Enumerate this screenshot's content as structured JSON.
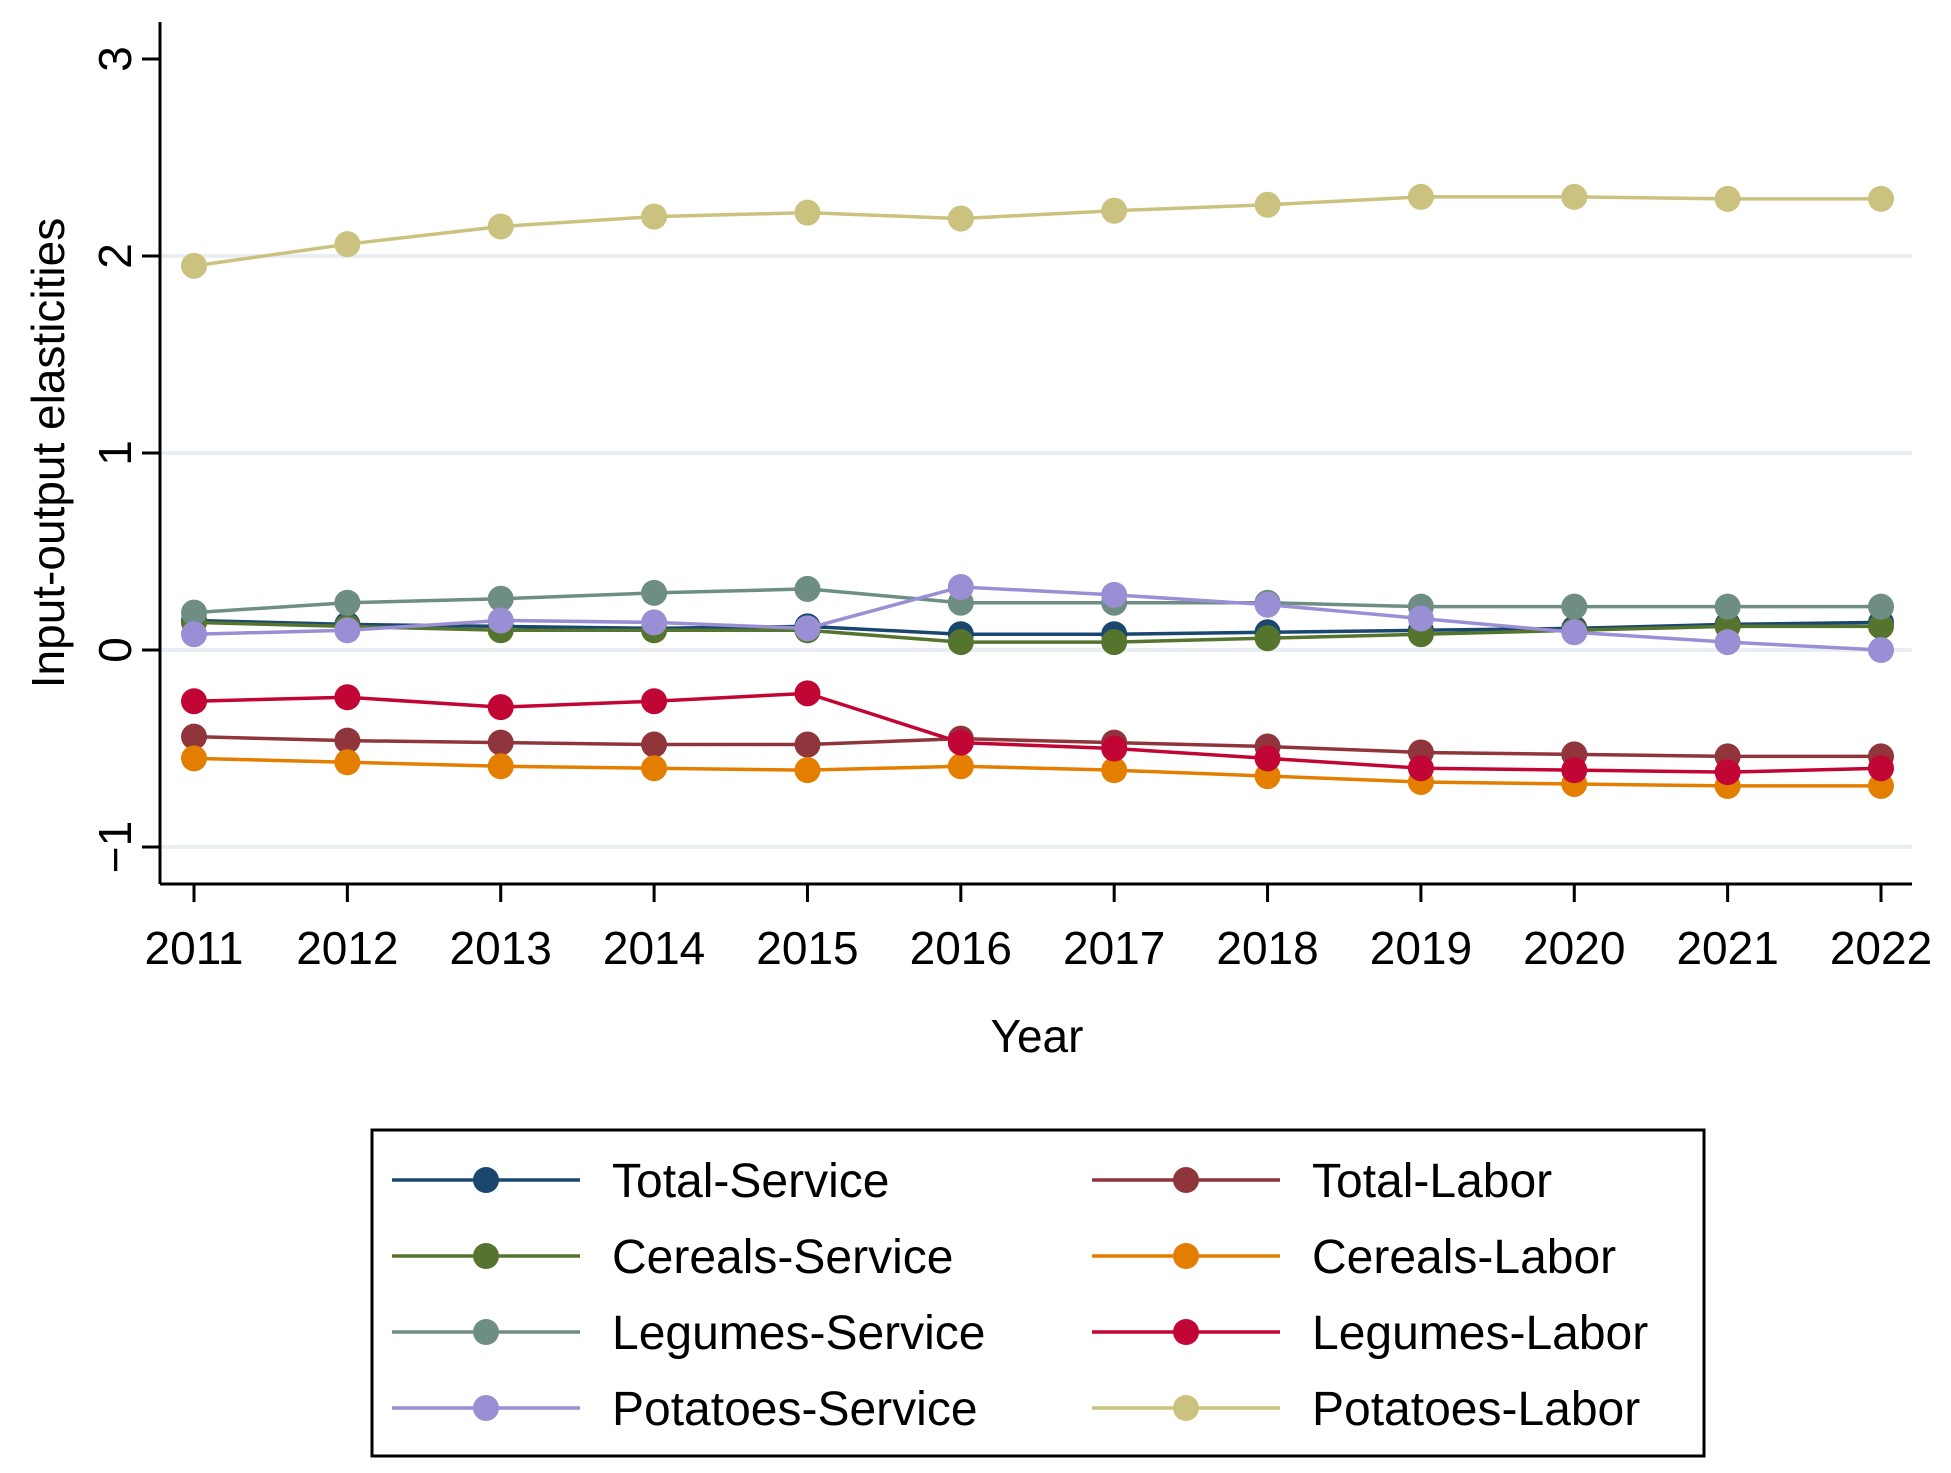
{
  "chart_data": {
    "type": "line",
    "title": "",
    "xlabel": "Year",
    "ylabel": "Input-output elasticities",
    "x": [
      2011,
      2012,
      2013,
      2014,
      2015,
      2016,
      2017,
      2018,
      2019,
      2020,
      2021,
      2022
    ],
    "x_tick_labels": [
      "2011",
      "2012",
      "2013",
      "2014",
      "2015",
      "2016",
      "2017",
      "2018",
      "2019",
      "2020",
      "2021",
      "2022"
    ],
    "y_ticks": [
      -1,
      0,
      1,
      2,
      3
    ],
    "y_tick_labels": [
      "−1",
      "0",
      "1",
      "2",
      "3"
    ],
    "ylim": [
      -1.15,
      3.0
    ],
    "grid": true,
    "legend_position": "bottom",
    "series": [
      {
        "name": "Total-Service",
        "color": "#1a476f",
        "values": [
          0.15,
          0.13,
          0.12,
          0.11,
          0.12,
          0.08,
          0.08,
          0.09,
          0.1,
          0.11,
          0.13,
          0.14
        ]
      },
      {
        "name": "Cereals-Service",
        "color": "#55752f",
        "values": [
          0.14,
          0.12,
          0.1,
          0.1,
          0.1,
          0.04,
          0.04,
          0.06,
          0.08,
          0.1,
          0.12,
          0.12
        ]
      },
      {
        "name": "Legumes-Service",
        "color": "#6e8e84",
        "values": [
          0.19,
          0.24,
          0.26,
          0.29,
          0.31,
          0.24,
          0.24,
          0.24,
          0.22,
          0.22,
          0.22,
          0.22
        ]
      },
      {
        "name": "Potatoes-Service",
        "color": "#9a8fd4",
        "values": [
          0.08,
          0.1,
          0.15,
          0.14,
          0.11,
          0.32,
          0.28,
          0.23,
          0.16,
          0.09,
          0.04,
          0.0
        ]
      },
      {
        "name": "Total-Labor",
        "color": "#90353b",
        "values": [
          -0.44,
          -0.46,
          -0.47,
          -0.48,
          -0.48,
          -0.45,
          -0.47,
          -0.49,
          -0.52,
          -0.53,
          -0.54,
          -0.54
        ]
      },
      {
        "name": "Cereals-Labor",
        "color": "#e37e00",
        "values": [
          -0.55,
          -0.57,
          -0.59,
          -0.6,
          -0.61,
          -0.59,
          -0.61,
          -0.64,
          -0.67,
          -0.68,
          -0.69,
          -0.69
        ]
      },
      {
        "name": "Legumes-Labor",
        "color": "#c10534",
        "values": [
          -0.26,
          -0.24,
          -0.29,
          -0.26,
          -0.22,
          -0.47,
          -0.5,
          -0.55,
          -0.6,
          -0.61,
          -0.62,
          -0.6
        ]
      },
      {
        "name": "Potatoes-Labor",
        "color": "#cac27e",
        "values": [
          1.95,
          2.06,
          2.15,
          2.2,
          2.22,
          2.19,
          2.23,
          2.26,
          2.3,
          2.3,
          2.29,
          2.29
        ]
      }
    ]
  }
}
